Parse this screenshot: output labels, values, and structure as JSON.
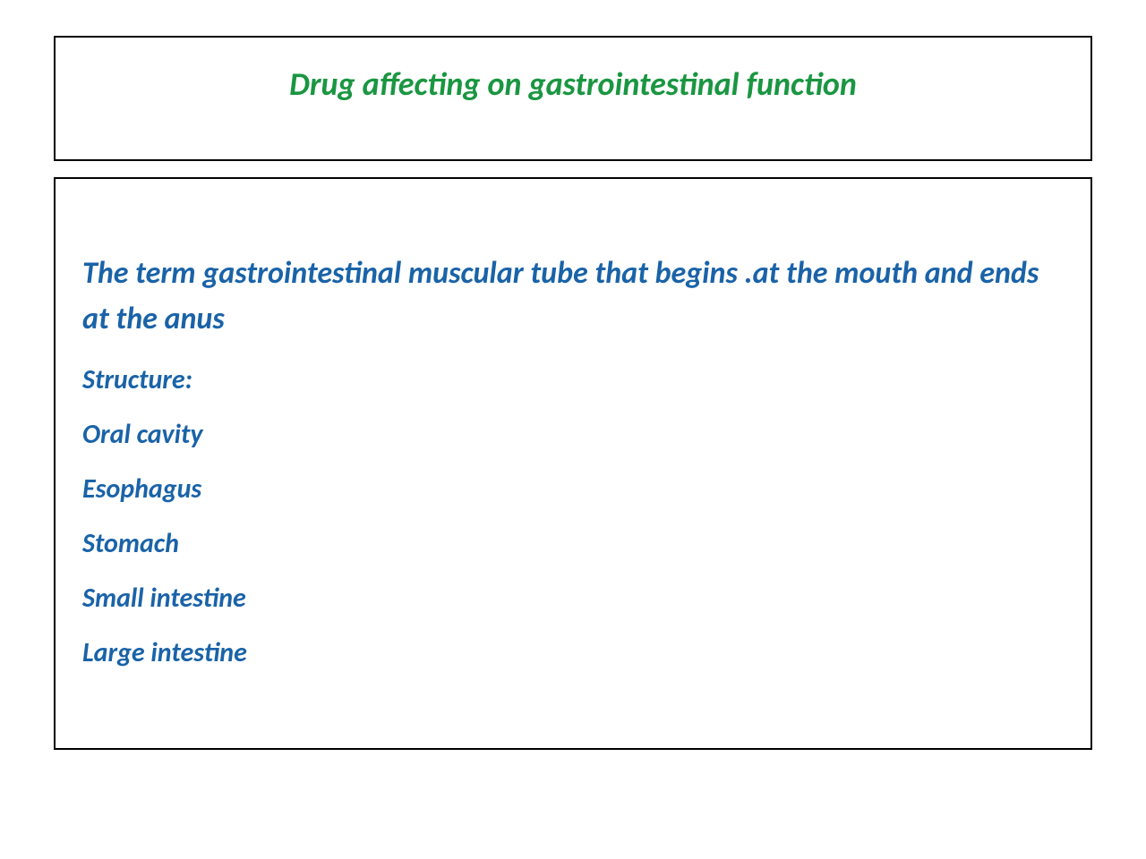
{
  "title": {
    "text": "Drug affecting on gastrointestinal function",
    "color": "#1a9641",
    "fontsize": 36,
    "font_weight": "bold",
    "font_style": "italic"
  },
  "content": {
    "intro": "The term gastrointestinal muscular tube that begins .at the mouth and ends at the anus",
    "structure_label": "Structure:",
    "structure_items": [
      "Oral cavity",
      "Esophagus",
      "Stomach",
      "Small intestine",
      "Large intestine"
    ],
    "text_color": "#1a63a8",
    "intro_fontsize": 34,
    "item_fontsize": 30,
    "font_weight": "bold",
    "font_style": "italic"
  },
  "layout": {
    "background_color": "#ffffff",
    "border_color": "#000000",
    "border_width": 2,
    "title_box_height": 140,
    "content_box_height": 640,
    "box_gap": 18,
    "page_padding_horizontal": 60,
    "page_padding_vertical": 40
  }
}
